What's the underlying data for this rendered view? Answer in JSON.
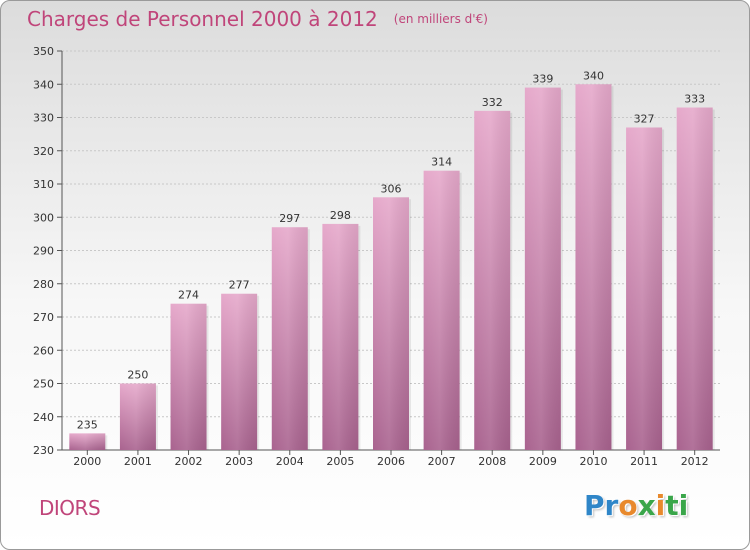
{
  "header": {
    "title": "Charges de Personnel 2000 à 2012",
    "unit": "(en milliers d'€)"
  },
  "footer": {
    "commune": "DIORS",
    "brand_letters": [
      "P",
      "r",
      "o",
      "x",
      "i",
      "t",
      "i"
    ],
    "brand_colors": [
      "#2f86c8",
      "#2f86c8",
      "#e8892c",
      "#3aa64a",
      "#e8892c",
      "#3aa64a",
      "#3aa64a"
    ]
  },
  "colors": {
    "bar_light": "#e6a9cb",
    "bar_dark": "#a9638f",
    "accent": "#c0457a"
  },
  "chart_data": {
    "type": "bar",
    "categories": [
      "2000",
      "2001",
      "2002",
      "2003",
      "2004",
      "2005",
      "2006",
      "2007",
      "2008",
      "2009",
      "2010",
      "2011",
      "2012"
    ],
    "values": [
      235,
      250,
      274,
      277,
      297,
      298,
      306,
      314,
      332,
      339,
      340,
      327,
      333
    ],
    "ylim": [
      230,
      350
    ],
    "yticks": [
      230,
      240,
      250,
      260,
      270,
      280,
      290,
      300,
      310,
      320,
      330,
      340,
      350
    ],
    "grid": true,
    "data_labels": true
  }
}
